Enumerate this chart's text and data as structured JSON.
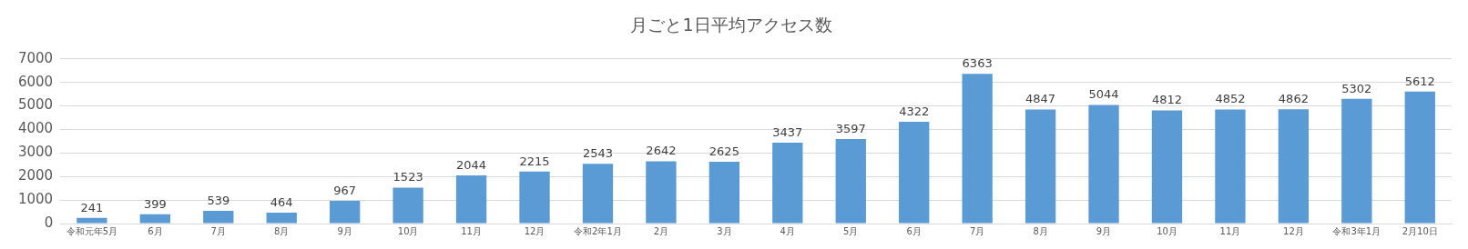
{
  "chart_data": {
    "type": "bar",
    "title": "月ごと1日平均アクセス数",
    "categories": [
      "令和元年5月",
      "6月",
      "7月",
      "8月",
      "9月",
      "10月",
      "11月",
      "12月",
      "令和2年1月",
      "2月",
      "3月",
      "4月",
      "5月",
      "6月",
      "7月",
      "8月",
      "9月",
      "10月",
      "11月",
      "12月",
      "令和3年1月",
      "2月10日"
    ],
    "values": [
      241,
      399,
      539,
      464,
      967,
      1523,
      2044,
      2215,
      2543,
      2642,
      2625,
      3437,
      3597,
      4322,
      6363,
      4847,
      5044,
      4812,
      4852,
      4862,
      5302,
      5612
    ],
    "color": "#5b9bd5",
    "ylim": [
      0,
      7000
    ],
    "yticks": [
      0,
      1000,
      2000,
      3000,
      4000,
      5000,
      6000,
      7000
    ],
    "grid": "y",
    "legend": false,
    "data_labels": true
  }
}
